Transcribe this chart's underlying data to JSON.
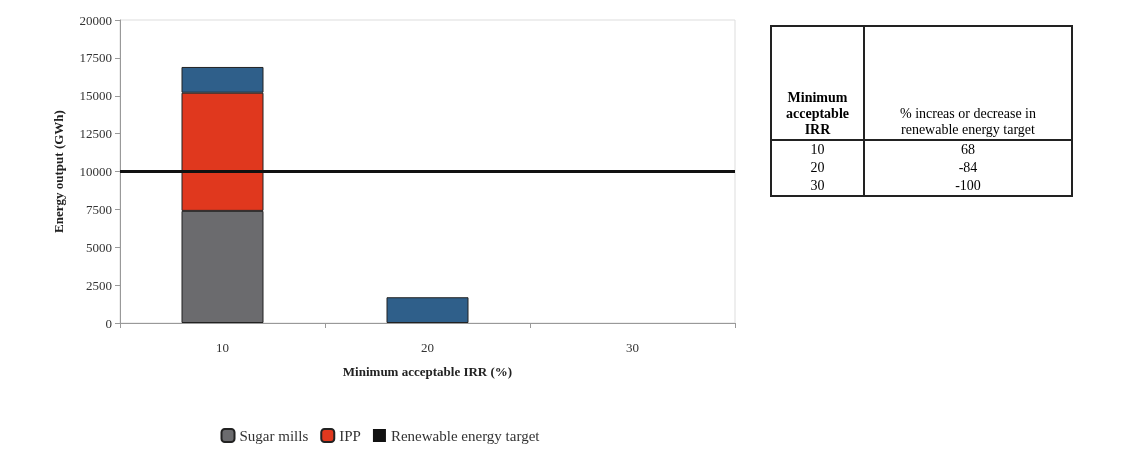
{
  "chart_data": [
    {
      "type": "bar",
      "stacked": true,
      "categories": [
        "10",
        "20",
        "30"
      ],
      "series": [
        {
          "name": "Sugar mills",
          "color": "#6b6b6e",
          "values": [
            7400,
            0,
            0
          ]
        },
        {
          "name": "IPP",
          "color": "#e0381e",
          "values": [
            7800,
            0,
            0
          ]
        },
        {
          "color": "#2f5f8a",
          "values": [
            1700,
            1700,
            0
          ]
        }
      ],
      "xlabel": "Minimum acceptable IRR (%)",
      "ylabel": "Energy output (GWh)",
      "ylim": [
        0,
        20000
      ],
      "yticks": [
        0,
        2500,
        5000,
        7500,
        10000,
        12500,
        15000,
        17500,
        20000
      ],
      "ref_lines": [
        {
          "axis": "y",
          "value": 10000,
          "label": "Renewable energy target",
          "color": "#111111"
        }
      ],
      "legend": "bottom",
      "grid": false
    },
    {
      "type": "other",
      "xlabel": "Minimum acceptable IRR",
      "ylabel": "% increas or decrease in renewable energy target",
      "categories": [
        "10",
        "20",
        "30"
      ],
      "values": [
        68,
        -84,
        -100
      ],
      "data_labels": true
    }
  ]
}
